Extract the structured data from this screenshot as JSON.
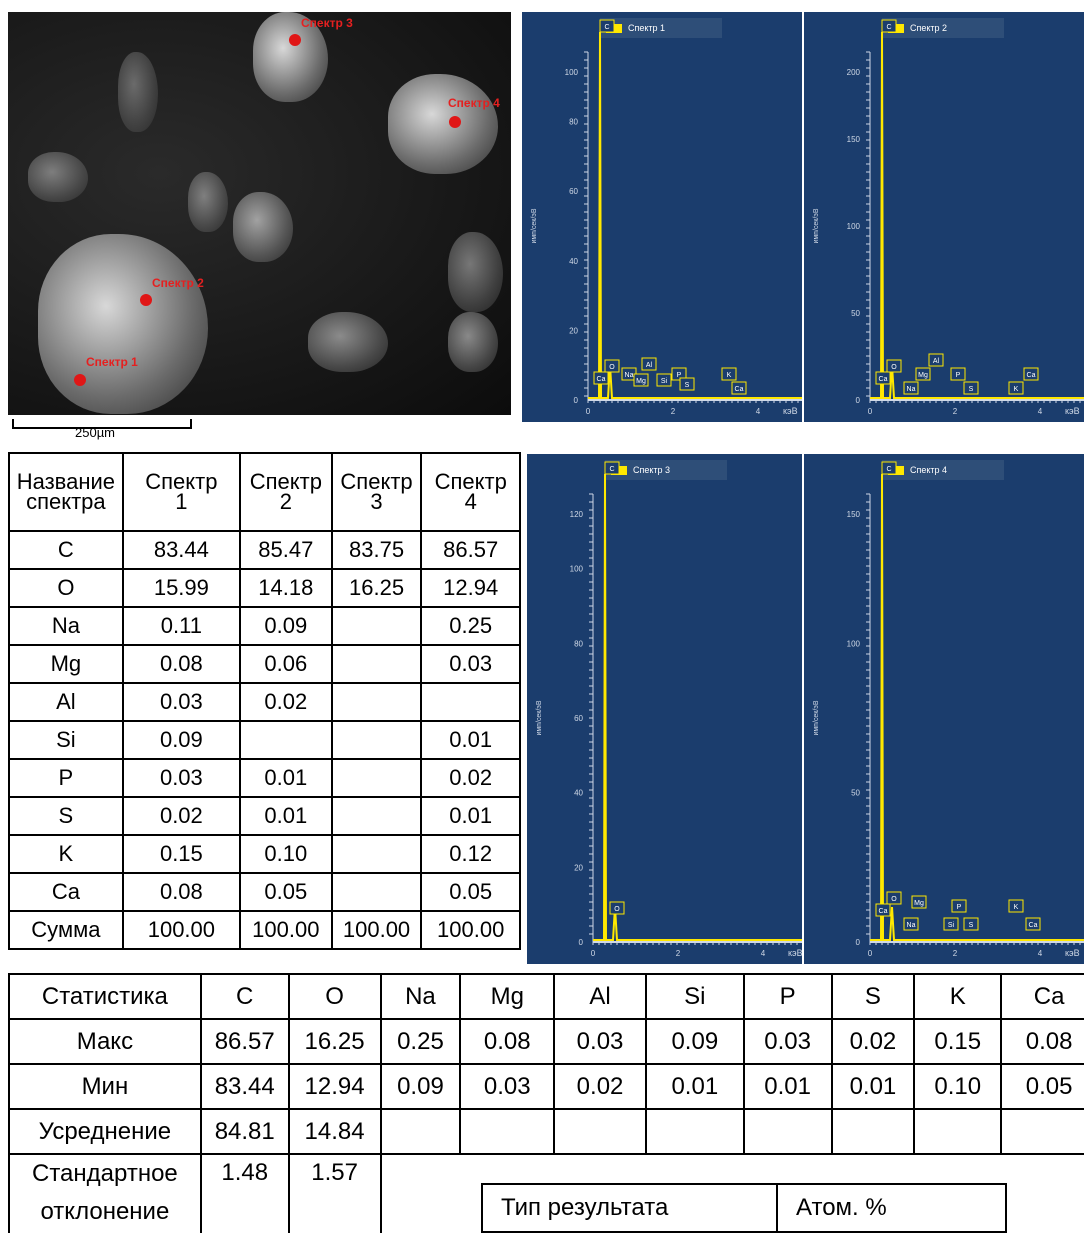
{
  "sem": {
    "scale_label": "250µm",
    "spots": [
      {
        "label": "Спектр 1"
      },
      {
        "label": "Спектр 2"
      },
      {
        "label": "Спектр 3"
      },
      {
        "label": "Спектр 4"
      }
    ]
  },
  "spectra": [
    {
      "name": "Спектр 1",
      "y_ticks": [
        "100",
        "80",
        "60",
        "40",
        "20",
        "0"
      ],
      "x_ticks": [
        "0",
        "2",
        "4"
      ],
      "x_unit": "кэВ",
      "y_unit": "имп/сек/эВ",
      "peaks": [
        "C",
        "O",
        "Ca",
        "Na",
        "Mg",
        "Al",
        "Si",
        "P",
        "S",
        "K",
        "Ca"
      ]
    },
    {
      "name": "Спектр 2",
      "y_ticks": [
        "200",
        "150",
        "100",
        "50",
        "0"
      ],
      "x_ticks": [
        "0",
        "2",
        "4"
      ],
      "x_unit": "кэВ",
      "y_unit": "имп/сек/эВ",
      "peaks": [
        "C",
        "O",
        "Ca",
        "Na",
        "Mg",
        "Al",
        "P",
        "S",
        "K",
        "Ca"
      ]
    },
    {
      "name": "Спектр 3",
      "y_ticks": [
        "120",
        "100",
        "80",
        "60",
        "40",
        "20",
        "0"
      ],
      "x_ticks": [
        "0",
        "2",
        "4"
      ],
      "x_unit": "кэВ",
      "y_unit": "имп/сек/эВ",
      "peaks": [
        "C",
        "O"
      ]
    },
    {
      "name": "Спектр 4",
      "y_ticks": [
        "150",
        "100",
        "50",
        "0"
      ],
      "x_ticks": [
        "0",
        "2",
        "4"
      ],
      "x_unit": "кэВ",
      "y_unit": "имп/сек/эВ",
      "peaks": [
        "C",
        "O",
        "Ca",
        "Na",
        "Mg",
        "Si",
        "P",
        "S",
        "K",
        "Ca"
      ]
    }
  ],
  "composition": {
    "header": [
      [
        "Название",
        "спектра"
      ],
      [
        "Спектр",
        "1"
      ],
      [
        "Спектр",
        "2"
      ],
      [
        "Спектр",
        "3"
      ],
      [
        "Спектр",
        "4"
      ]
    ],
    "rows": [
      [
        "C",
        "83.44",
        "85.47",
        "83.75",
        "86.57"
      ],
      [
        "O",
        "15.99",
        "14.18",
        "16.25",
        "12.94"
      ],
      [
        "Na",
        "0.11",
        "0.09",
        "",
        "0.25"
      ],
      [
        "Mg",
        "0.08",
        "0.06",
        "",
        "0.03"
      ],
      [
        "Al",
        "0.03",
        "0.02",
        "",
        ""
      ],
      [
        "Si",
        "0.09",
        "",
        "",
        "0.01"
      ],
      [
        "P",
        "0.03",
        "0.01",
        "",
        "0.02"
      ],
      [
        "S",
        "0.02",
        "0.01",
        "",
        "0.01"
      ],
      [
        "K",
        "0.15",
        "0.10",
        "",
        "0.12"
      ],
      [
        "Ca",
        "0.08",
        "0.05",
        "",
        "0.05"
      ],
      [
        "Сумма",
        "100.00",
        "100.00",
        "100.00",
        "100.00"
      ]
    ]
  },
  "statistics": {
    "header": [
      "Статистика",
      "C",
      "O",
      "Na",
      "Mg",
      "Al",
      "Si",
      "P",
      "S",
      "K",
      "Ca"
    ],
    "rows": [
      [
        "Макс",
        "86.57",
        "16.25",
        "0.25",
        "0.08",
        "0.03",
        "0.09",
        "0.03",
        "0.02",
        "0.15",
        "0.08"
      ],
      [
        "Мин",
        "83.44",
        "12.94",
        "0.09",
        "0.03",
        "0.02",
        "0.01",
        "0.01",
        "0.01",
        "0.10",
        "0.05"
      ],
      [
        "Усреднение",
        "84.81",
        "14.84"
      ]
    ],
    "std_label": [
      "Стандартное",
      "отклонение"
    ],
    "std_values": [
      "1.48",
      "1.57"
    ]
  },
  "result_type": {
    "label": "Тип результата",
    "value": "Атом. %"
  }
}
